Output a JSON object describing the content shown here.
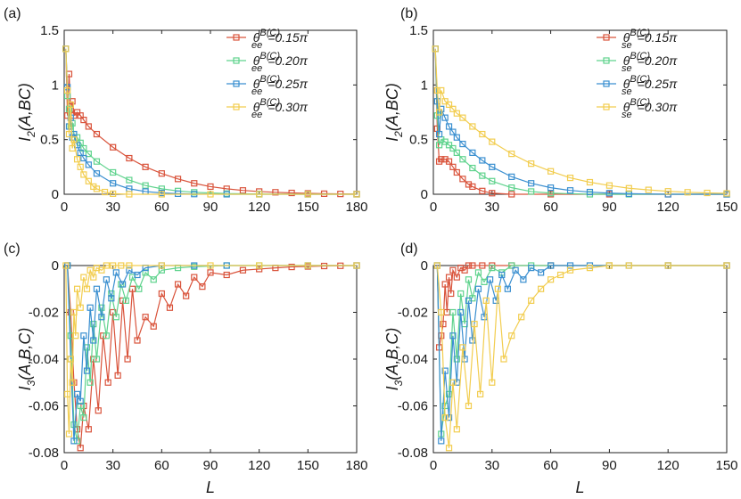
{
  "figure": {
    "xlabel": "L"
  },
  "chart_data": [
    {
      "panel": "(a)",
      "type": "line",
      "ylabel_main": "I",
      "ylabel_sub": "2",
      "ylabel_rest": "(A,BC)",
      "xlim": [
        0,
        180
      ],
      "ylim": [
        0,
        1.5
      ],
      "xticks": [
        0,
        30,
        60,
        90,
        120,
        150,
        180
      ],
      "xtick_labels": [
        "0",
        "30",
        "60",
        "90",
        "120",
        "150",
        "180"
      ],
      "yticks": [
        0,
        0.5,
        1,
        1.5
      ],
      "ytick_labels": [
        "0",
        "0.5",
        "1",
        "1.5"
      ],
      "legend_position": "top-right",
      "series": [
        {
          "name_symbol": "θ",
          "name_sub": "ee",
          "name_sup": "B(C)",
          "name_value": "=0.15π",
          "color": "#d9533b",
          "x": [
            1,
            2,
            3,
            4,
            5,
            6,
            8,
            10,
            12,
            15,
            20,
            30,
            40,
            50,
            60,
            70,
            80,
            90,
            100,
            110,
            120,
            130,
            140,
            150,
            160,
            170,
            180
          ],
          "y": [
            1.33,
            0.72,
            1.1,
            0.78,
            0.85,
            0.72,
            0.75,
            0.72,
            0.68,
            0.62,
            0.55,
            0.43,
            0.33,
            0.25,
            0.19,
            0.14,
            0.1,
            0.07,
            0.05,
            0.035,
            0.025,
            0.018,
            0.012,
            0.008,
            0.005,
            0.003,
            0.002
          ]
        },
        {
          "name_symbol": "θ",
          "name_sub": "ee",
          "name_sup": "B(C)",
          "name_value": "=0.20π",
          "color": "#5fd38d",
          "x": [
            1,
            2,
            3,
            4,
            5,
            6,
            8,
            10,
            12,
            15,
            20,
            30,
            40,
            50,
            60,
            70,
            80,
            100,
            120,
            150,
            180
          ],
          "y": [
            1.33,
            0.9,
            0.78,
            0.62,
            0.65,
            0.55,
            0.52,
            0.47,
            0.42,
            0.37,
            0.3,
            0.2,
            0.13,
            0.08,
            0.05,
            0.03,
            0.018,
            0.006,
            0.002,
            0.0,
            0.0
          ]
        },
        {
          "name_symbol": "θ",
          "name_sub": "ee",
          "name_sup": "B(C)",
          "name_value": "=0.25π",
          "color": "#3a8fd0",
          "x": [
            1,
            2,
            3,
            4,
            5,
            6,
            8,
            10,
            12,
            15,
            20,
            30,
            40,
            50,
            60,
            70,
            80,
            100,
            120,
            150,
            180
          ],
          "y": [
            1.33,
            0.98,
            0.62,
            0.7,
            0.52,
            0.55,
            0.45,
            0.38,
            0.33,
            0.27,
            0.19,
            0.1,
            0.05,
            0.025,
            0.012,
            0.005,
            0.002,
            0.0,
            0.0,
            0.0,
            0.0
          ]
        },
        {
          "name_symbol": "θ",
          "name_sub": "ee",
          "name_sup": "B(C)",
          "name_value": "=0.30π",
          "color": "#f2cd4f",
          "x": [
            1,
            2,
            3,
            4,
            5,
            6,
            8,
            10,
            12,
            15,
            18,
            20,
            25,
            30,
            40,
            60,
            90,
            120,
            150,
            180
          ],
          "y": [
            1.33,
            0.95,
            0.55,
            0.82,
            0.42,
            0.5,
            0.32,
            0.25,
            0.18,
            0.12,
            0.07,
            0.05,
            0.02,
            0.005,
            0.0,
            0.0,
            0.0,
            0.0,
            0.0,
            0.0
          ]
        }
      ]
    },
    {
      "panel": "(b)",
      "type": "line",
      "ylabel_main": "I",
      "ylabel_sub": "2",
      "ylabel_rest": "(A,BC)",
      "xlim": [
        0,
        150
      ],
      "ylim": [
        0,
        1.5
      ],
      "xticks": [
        0,
        30,
        60,
        90,
        120,
        150
      ],
      "xtick_labels": [
        "0",
        "30",
        "60",
        "90",
        "120",
        "150"
      ],
      "yticks": [
        0,
        0.5,
        1,
        1.5
      ],
      "ytick_labels": [
        "0",
        "0.5",
        "1",
        "1.5"
      ],
      "legend_position": "top-right",
      "series": [
        {
          "name_symbol": "θ",
          "name_sub": "se",
          "name_sup": "B(C)",
          "name_value": "=0.15π",
          "color": "#d9533b",
          "x": [
            1,
            2,
            3,
            4,
            6,
            8,
            10,
            12,
            15,
            18,
            20,
            25,
            30,
            40,
            60,
            90,
            120,
            150
          ],
          "y": [
            1.33,
            0.6,
            0.3,
            0.32,
            0.32,
            0.3,
            0.25,
            0.2,
            0.14,
            0.09,
            0.07,
            0.03,
            0.01,
            0.0,
            0.0,
            0.0,
            0.0,
            0.0
          ]
        },
        {
          "name_symbol": "θ",
          "name_sub": "se",
          "name_sup": "B(C)",
          "name_value": "=0.20π",
          "color": "#5fd38d",
          "x": [
            1,
            2,
            3,
            4,
            6,
            8,
            10,
            12,
            15,
            20,
            25,
            30,
            40,
            50,
            60,
            80,
            100,
            150
          ],
          "y": [
            1.33,
            0.72,
            0.45,
            0.5,
            0.48,
            0.45,
            0.42,
            0.38,
            0.32,
            0.24,
            0.17,
            0.12,
            0.06,
            0.025,
            0.01,
            0.0,
            0.0,
            0.0
          ]
        },
        {
          "name_symbol": "θ",
          "name_sub": "se",
          "name_sup": "B(C)",
          "name_value": "=0.25π",
          "color": "#3a8fd0",
          "x": [
            1,
            2,
            3,
            4,
            6,
            8,
            10,
            12,
            15,
            20,
            25,
            30,
            40,
            50,
            60,
            70,
            80,
            90,
            100,
            120,
            150
          ],
          "y": [
            1.33,
            0.85,
            0.55,
            0.78,
            0.7,
            0.62,
            0.57,
            0.52,
            0.46,
            0.38,
            0.31,
            0.25,
            0.16,
            0.1,
            0.06,
            0.035,
            0.02,
            0.01,
            0.005,
            0.0,
            0.0
          ]
        },
        {
          "name_symbol": "θ",
          "name_sub": "se",
          "name_sup": "B(C)",
          "name_value": "=0.30π",
          "color": "#f2cd4f",
          "x": [
            1,
            2,
            3,
            4,
            6,
            8,
            10,
            12,
            15,
            20,
            25,
            30,
            40,
            50,
            60,
            70,
            80,
            90,
            100,
            110,
            120,
            130,
            140,
            150
          ],
          "y": [
            1.33,
            0.95,
            0.75,
            0.95,
            0.85,
            0.82,
            0.78,
            0.74,
            0.7,
            0.62,
            0.55,
            0.48,
            0.37,
            0.28,
            0.21,
            0.15,
            0.11,
            0.08,
            0.055,
            0.04,
            0.027,
            0.018,
            0.012,
            0.008
          ]
        }
      ]
    },
    {
      "panel": "(c)",
      "type": "line",
      "ylabel_main": "I",
      "ylabel_sub": "3",
      "ylabel_rest": "(A,B,C)",
      "xlim": [
        0,
        180
      ],
      "ylim": [
        -0.08,
        0
      ],
      "xticks": [
        0,
        30,
        60,
        90,
        120,
        150,
        180
      ],
      "xtick_labels": [
        "0",
        "30",
        "60",
        "90",
        "120",
        "150",
        "180"
      ],
      "yticks": [
        -0.08,
        -0.06,
        -0.04,
        -0.02,
        0
      ],
      "ytick_labels": [
        "-0.08",
        "-0.06",
        "-0.04",
        "-0.02",
        "0"
      ],
      "series": [
        {
          "name": "0.15π",
          "color": "#d9533b",
          "x": [
            2,
            4,
            6,
            8,
            10,
            12,
            15,
            18,
            21,
            24,
            27,
            30,
            33,
            36,
            39,
            42,
            45,
            50,
            55,
            60,
            65,
            70,
            75,
            80,
            85,
            90,
            100,
            110,
            120,
            130,
            140,
            150,
            160,
            170,
            180
          ],
          "y": [
            0,
            -0.02,
            -0.05,
            -0.07,
            -0.078,
            -0.06,
            -0.07,
            -0.04,
            -0.062,
            -0.03,
            -0.05,
            -0.02,
            -0.047,
            -0.015,
            -0.04,
            -0.01,
            -0.032,
            -0.022,
            -0.026,
            -0.012,
            -0.018,
            -0.008,
            -0.013,
            -0.005,
            -0.009,
            -0.003,
            -0.004,
            -0.002,
            -0.0015,
            -0.001,
            -0.0006,
            -0.0004,
            -0.0002,
            -0.0001,
            0
          ]
        },
        {
          "name": "0.20π",
          "color": "#5fd38d",
          "x": [
            2,
            4,
            6,
            8,
            10,
            12,
            14,
            16,
            18,
            20,
            23,
            26,
            29,
            32,
            35,
            38,
            42,
            46,
            50,
            55,
            60,
            70,
            80,
            100,
            120,
            150,
            180
          ],
          "y": [
            0,
            -0.03,
            -0.068,
            -0.075,
            -0.06,
            -0.065,
            -0.035,
            -0.05,
            -0.025,
            -0.04,
            -0.018,
            -0.03,
            -0.012,
            -0.022,
            -0.008,
            -0.015,
            -0.005,
            -0.01,
            -0.003,
            -0.006,
            -0.002,
            -0.001,
            -0.0005,
            0,
            0,
            0,
            0
          ]
        },
        {
          "name": "0.25π",
          "color": "#3a8fd0",
          "x": [
            2,
            4,
            6,
            8,
            10,
            12,
            14,
            16,
            18,
            20,
            23,
            26,
            29,
            32,
            36,
            40,
            45,
            50,
            60,
            80,
            100,
            150,
            180
          ],
          "y": [
            0,
            -0.04,
            -0.075,
            -0.055,
            -0.058,
            -0.03,
            -0.045,
            -0.018,
            -0.032,
            -0.01,
            -0.022,
            -0.006,
            -0.014,
            -0.003,
            -0.008,
            -0.002,
            -0.004,
            -0.001,
            0,
            0,
            0,
            0,
            0
          ]
        },
        {
          "name": "0.30π",
          "color": "#f2cd4f",
          "x": [
            1,
            2,
            3,
            4,
            5,
            6,
            7,
            8,
            10,
            12,
            14,
            16,
            18,
            20,
            23,
            26,
            30,
            35,
            40,
            60,
            90,
            120,
            150,
            180
          ],
          "y": [
            0,
            -0.055,
            -0.072,
            -0.04,
            -0.05,
            -0.02,
            -0.03,
            -0.01,
            -0.018,
            -0.005,
            -0.01,
            -0.002,
            -0.005,
            -0.001,
            -0.002,
            0,
            0,
            0,
            0,
            0,
            0,
            0,
            0,
            0
          ]
        }
      ]
    },
    {
      "panel": "(d)",
      "type": "line",
      "ylabel_main": "I",
      "ylabel_sub": "3",
      "ylabel_rest": "(A,B,C)",
      "xlim": [
        0,
        150
      ],
      "ylim": [
        -0.08,
        0
      ],
      "xticks": [
        0,
        30,
        60,
        90,
        120,
        150
      ],
      "xtick_labels": [
        "0",
        "30",
        "60",
        "90",
        "120",
        "150"
      ],
      "yticks": [
        -0.08,
        -0.06,
        -0.04,
        -0.02,
        0
      ],
      "ytick_labels": [
        "-0.08",
        "-0.06",
        "-0.04",
        "-0.02",
        "0"
      ],
      "series": [
        {
          "name": "0.15π",
          "color": "#d9533b",
          "x": [
            2,
            3,
            4,
            5,
            6,
            7,
            8,
            9,
            10,
            12,
            14,
            16,
            18,
            20,
            25,
            30,
            40,
            60,
            90,
            120,
            150
          ],
          "y": [
            0,
            -0.035,
            -0.03,
            -0.025,
            -0.008,
            -0.02,
            -0.005,
            -0.012,
            -0.002,
            -0.005,
            -0.001,
            -0.002,
            0,
            0,
            0,
            0,
            0,
            0,
            0,
            0,
            0
          ]
        },
        {
          "name": "0.20π",
          "color": "#5fd38d",
          "x": [
            2,
            4,
            6,
            8,
            10,
            12,
            14,
            16,
            18,
            20,
            23,
            26,
            30,
            35,
            40,
            50,
            60,
            90,
            120,
            150
          ],
          "y": [
            0,
            -0.072,
            -0.06,
            -0.055,
            -0.02,
            -0.04,
            -0.012,
            -0.025,
            -0.006,
            -0.014,
            -0.003,
            -0.007,
            -0.001,
            -0.003,
            0,
            0,
            0,
            0,
            0,
            0
          ]
        },
        {
          "name": "0.25π",
          "color": "#3a8fd0",
          "x": [
            2,
            4,
            6,
            8,
            10,
            12,
            14,
            16,
            18,
            20,
            23,
            26,
            29,
            32,
            35,
            38,
            42,
            46,
            50,
            55,
            60,
            70,
            80,
            100,
            120,
            150
          ],
          "y": [
            0,
            -0.075,
            -0.045,
            -0.065,
            -0.03,
            -0.05,
            -0.02,
            -0.04,
            -0.015,
            -0.032,
            -0.01,
            -0.022,
            -0.006,
            -0.015,
            -0.004,
            -0.01,
            -0.002,
            -0.006,
            -0.001,
            -0.003,
            0,
            0,
            0,
            0,
            0,
            0
          ]
        },
        {
          "name": "0.30π",
          "color": "#f2cd4f",
          "x": [
            2,
            4,
            6,
            8,
            10,
            12,
            15,
            18,
            21,
            24,
            27,
            30,
            33,
            36,
            40,
            45,
            50,
            55,
            60,
            65,
            70,
            80,
            90,
            100,
            120,
            150
          ],
          "y": [
            0,
            -0.02,
            -0.065,
            -0.078,
            -0.05,
            -0.07,
            -0.035,
            -0.06,
            -0.025,
            -0.055,
            -0.015,
            -0.05,
            -0.01,
            -0.04,
            -0.03,
            -0.022,
            -0.015,
            -0.01,
            -0.006,
            -0.004,
            -0.002,
            -0.001,
            0,
            0,
            0,
            0
          ]
        }
      ]
    }
  ]
}
